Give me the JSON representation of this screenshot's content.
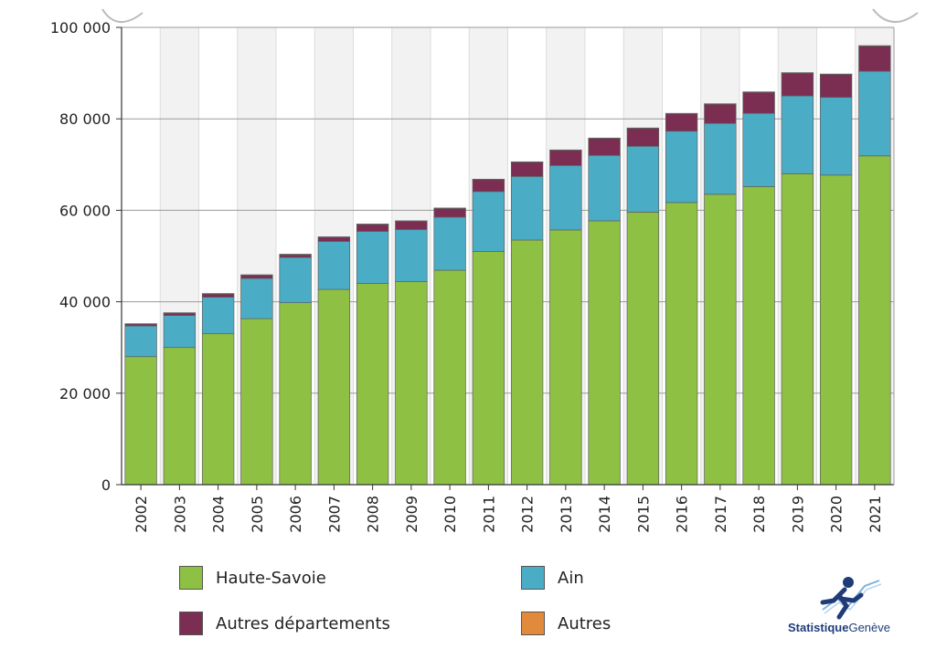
{
  "chart_data": {
    "type": "bar",
    "stacked": true,
    "categories": [
      "2002",
      "2003",
      "2004",
      "2005",
      "2006",
      "2007",
      "2008",
      "2009",
      "2010",
      "2011",
      "2012",
      "2013",
      "2014",
      "2015",
      "2016",
      "2017",
      "2018",
      "2019",
      "2020",
      "2021"
    ],
    "series": [
      {
        "name": "Haute-Savoie",
        "color": "#8dc043",
        "values": [
          28000,
          30000,
          33000,
          36300,
          39800,
          42700,
          44000,
          44400,
          46900,
          51000,
          53500,
          55700,
          57700,
          59600,
          61700,
          63500,
          65200,
          68000,
          67700,
          71900
        ]
      },
      {
        "name": "Ain",
        "color": "#4bacc6",
        "values": [
          6700,
          7000,
          8000,
          8800,
          9900,
          10500,
          11400,
          11400,
          11600,
          13100,
          13900,
          14100,
          14300,
          14400,
          15600,
          15500,
          16000,
          17000,
          17000,
          18500
        ]
      },
      {
        "name": "Autres départements",
        "color": "#7c2d52",
        "values": [
          400,
          500,
          700,
          700,
          600,
          900,
          1500,
          1800,
          1900,
          2600,
          3100,
          3300,
          3700,
          3900,
          3800,
          4200,
          4600,
          5000,
          5000,
          5500
        ]
      },
      {
        "name": "Autres",
        "color": "#e28a3c",
        "values": [
          100,
          100,
          100,
          100,
          100,
          100,
          100,
          100,
          100,
          100,
          100,
          100,
          100,
          100,
          100,
          100,
          100,
          100,
          100,
          100
        ]
      }
    ],
    "ylim": [
      0,
      100000
    ],
    "yticks": [
      0,
      20000,
      40000,
      60000,
      80000,
      100000
    ],
    "ytick_labels": [
      "0",
      "20 000",
      "40 000",
      "60 000",
      "80 000",
      "100 000"
    ],
    "title": "",
    "xlabel": "",
    "ylabel": "",
    "grid": true,
    "legend": "bottom"
  },
  "branding": {
    "logo_part1": "Statistique",
    "logo_part2": "Genève"
  }
}
